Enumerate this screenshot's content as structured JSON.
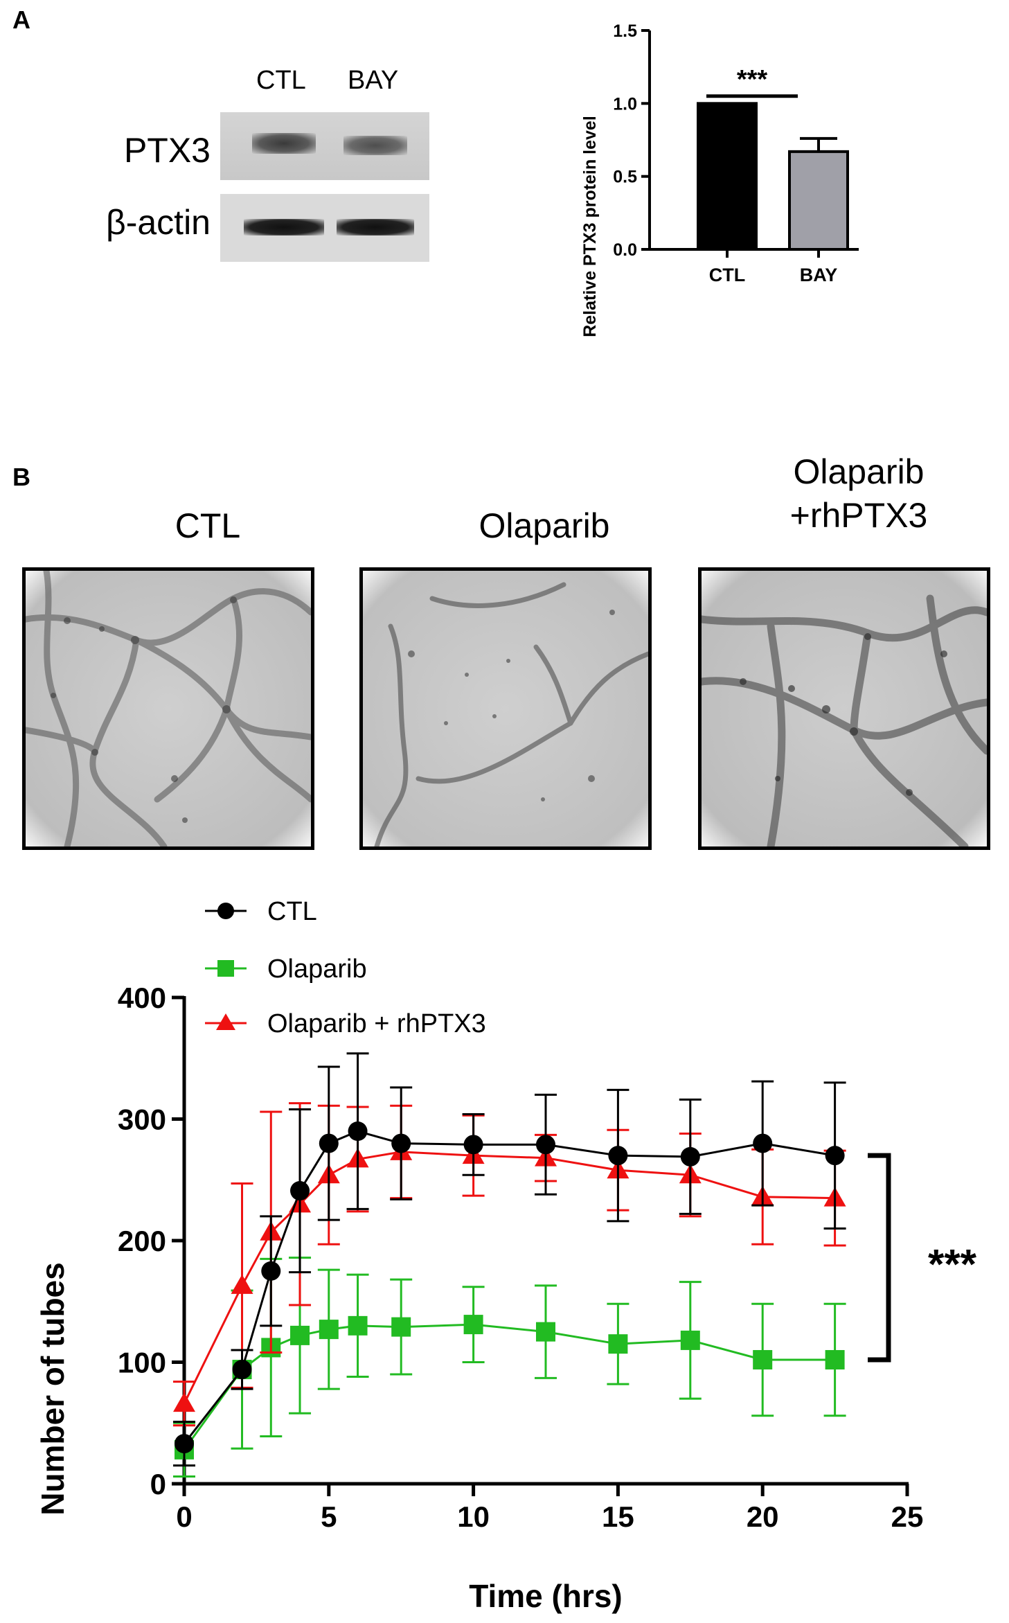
{
  "panel_a": {
    "label": "A",
    "western_blot": {
      "columns": [
        "CTL",
        "BAY"
      ],
      "rows": [
        "PTX3",
        "β-actin"
      ]
    }
  },
  "panel_b": {
    "label": "B",
    "image_titles": [
      "CTL",
      "Olaparib",
      "Olaparib\n+rhPTX3"
    ]
  },
  "colors": {
    "ctl": "#000000",
    "olaparib": "#22bb22",
    "rhptx3": "#ee1111",
    "bay": "#a0a0a8"
  },
  "chart_data": [
    {
      "type": "bar",
      "title": "",
      "ylabel": "Relative PTX3 protein level",
      "xlabel": "",
      "categories": [
        "CTL",
        "BAY"
      ],
      "values": [
        1.0,
        0.67
      ],
      "errors": [
        0,
        0.09
      ],
      "ylim": [
        0,
        1.5
      ],
      "yticks": [
        "0.0",
        "0.5",
        "1.0",
        "1.5"
      ],
      "significance": "***"
    },
    {
      "type": "line",
      "title": "",
      "xlabel": "Time (hrs)",
      "ylabel": "Number of tubes",
      "xlim": [
        0,
        25
      ],
      "ylim": [
        0,
        400
      ],
      "xticks": [
        "0",
        "5",
        "10",
        "15",
        "20",
        "25"
      ],
      "yticks": [
        "0",
        "100",
        "200",
        "300",
        "400"
      ],
      "x": [
        0,
        2,
        3,
        4,
        5,
        6,
        7.5,
        10,
        12.5,
        15,
        17.5,
        20,
        22.5
      ],
      "series": [
        {
          "name": "CTL",
          "marker": "circle",
          "values": [
            33,
            94,
            175,
            241,
            280,
            290,
            280,
            279,
            279,
            270,
            269,
            280,
            270
          ],
          "errors": [
            18,
            16,
            45,
            67,
            63,
            64,
            46,
            25,
            41,
            54,
            47,
            51,
            60
          ]
        },
        {
          "name": "Olaparib",
          "marker": "square",
          "values": [
            28,
            94,
            112,
            122,
            127,
            130,
            129,
            131,
            125,
            115,
            118,
            102,
            102
          ],
          "errors": [
            22,
            65,
            73,
            64,
            49,
            42,
            39,
            31,
            38,
            33,
            48,
            46,
            46
          ]
        },
        {
          "name": "Olaparib + rhPTX3",
          "marker": "triangle",
          "values": [
            66,
            163,
            207,
            230,
            254,
            267,
            273,
            270,
            268,
            258,
            254,
            236,
            235
          ],
          "errors": [
            18,
            84,
            99,
            83,
            57,
            43,
            38,
            33,
            19,
            33,
            34,
            39,
            39
          ]
        }
      ],
      "significance": "***"
    }
  ]
}
